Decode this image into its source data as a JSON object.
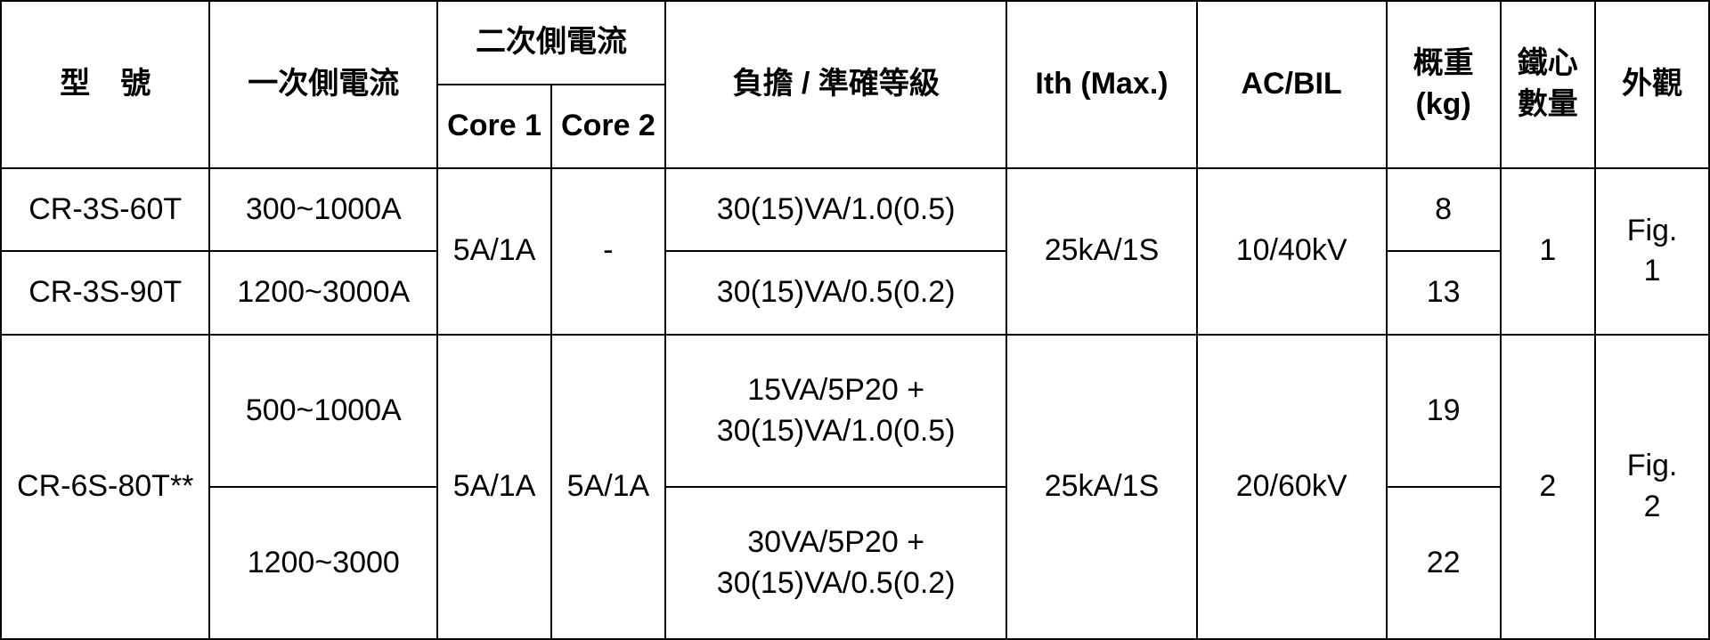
{
  "table": {
    "background_color": "#ffffff",
    "border_color": "#000000",
    "border_width": 2,
    "font_size": 34,
    "headers": {
      "model": "型號",
      "primary": "一次側電流",
      "secondary": "二次側電流",
      "core1": "Core 1",
      "core2": "Core 2",
      "burden": "負擔 / 準確等級",
      "ith": "Ith (Max.)",
      "acbil": "AC/BIL",
      "weight_line1": "概重",
      "weight_line2": "(kg)",
      "cores_line1": "鐵心",
      "cores_line2": "數量",
      "figure": "外觀"
    },
    "group1": {
      "row1": {
        "model": "CR-3S-60T",
        "primary": "300~1000A",
        "burden": "30(15)VA/1.0(0.5)",
        "weight": "8"
      },
      "row2": {
        "model": "CR-3S-90T",
        "primary": "1200~3000A",
        "burden": "30(15)VA/0.5(0.2)",
        "weight": "13"
      },
      "core1": "5A/1A",
      "core2": "-",
      "ith": "25kA/1S",
      "acbil": "10/40kV",
      "cores": "1",
      "figure_line1": "Fig.",
      "figure_line2": "1"
    },
    "group2": {
      "model": "CR-6S-80T**",
      "row1": {
        "primary": "500~1000A",
        "burden_line1": "15VA/5P20 +",
        "burden_line2": "30(15)VA/1.0(0.5)",
        "weight": "19"
      },
      "row2": {
        "primary": "1200~3000",
        "burden_line1": "30VA/5P20 +",
        "burden_line2": "30(15)VA/0.5(0.2)",
        "weight": "22"
      },
      "core1": "5A/1A",
      "core2": "5A/1A",
      "ith": "25kA/1S",
      "acbil": "20/60kV",
      "cores": "2",
      "figure_line1": "Fig.",
      "figure_line2": "2"
    },
    "col_widths": {
      "model": 220,
      "primary": 240,
      "core1": 120,
      "core2": 120,
      "burden": 360,
      "ith": 200,
      "acbil": 200,
      "weight": 120,
      "cores": 100,
      "figure": 120
    }
  }
}
